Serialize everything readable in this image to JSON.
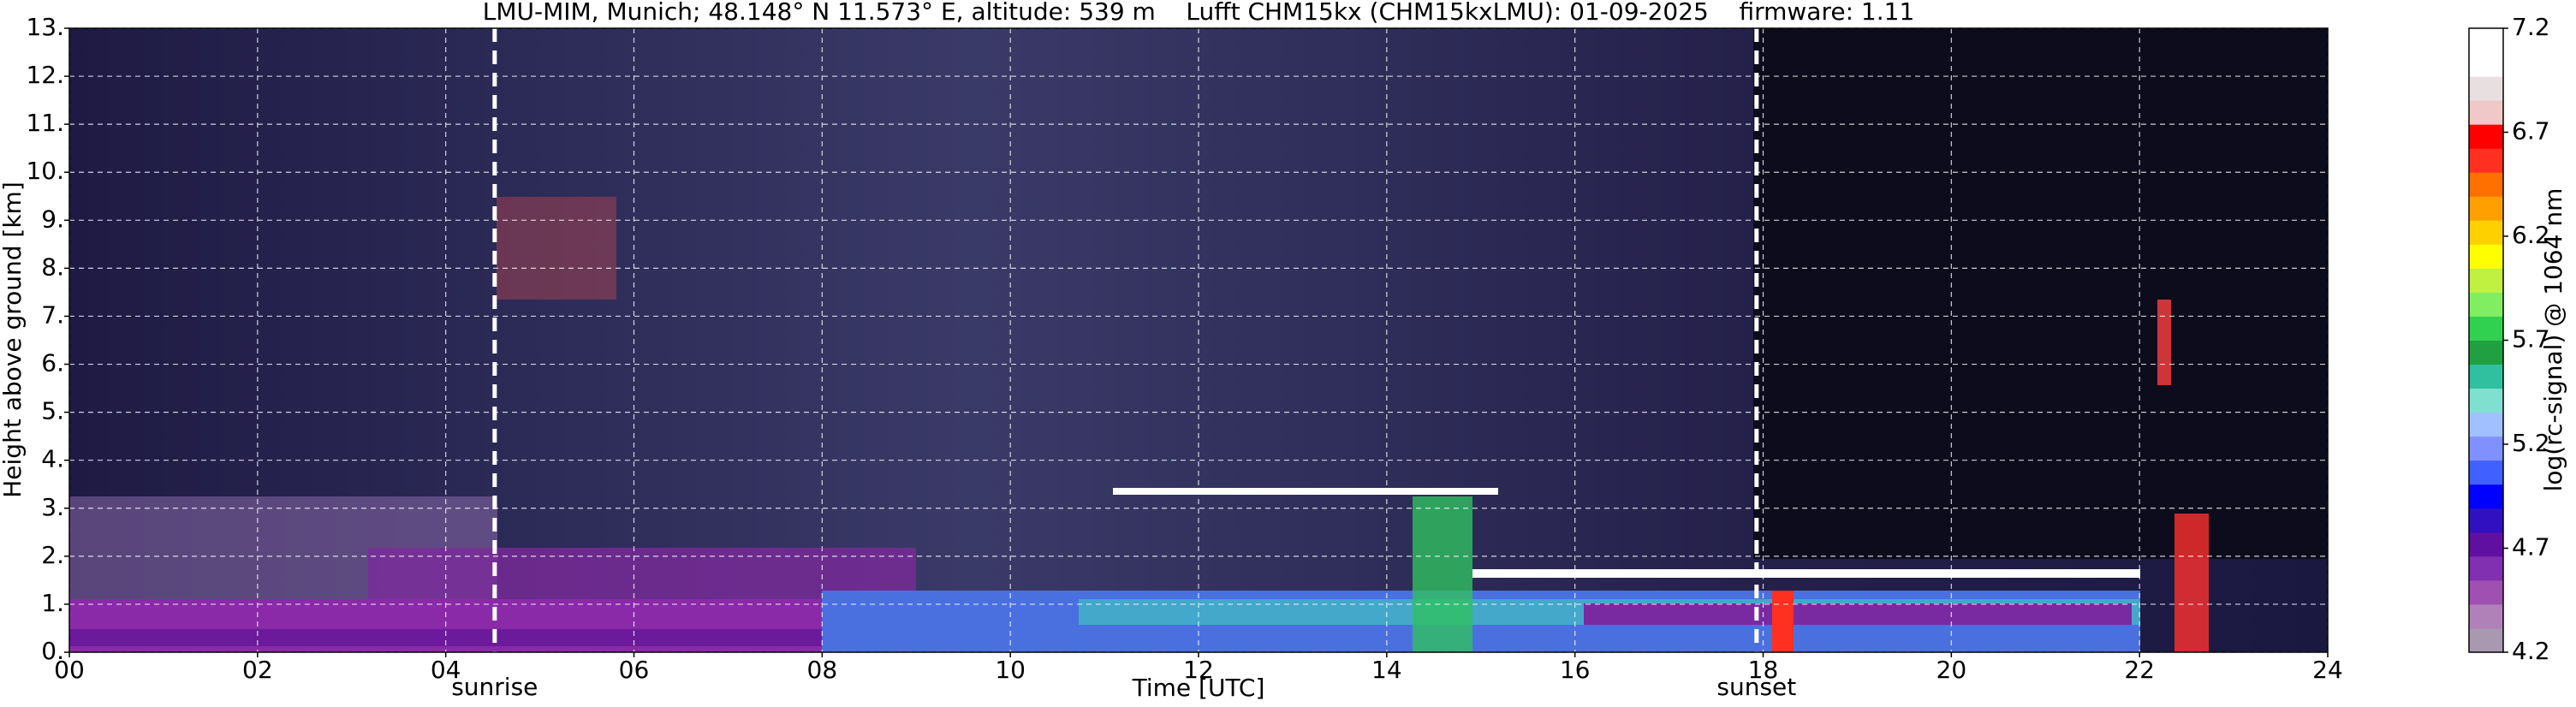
{
  "chart_data": {
    "type": "heatmap",
    "title": "LMU-MIM, Munich; 48.148° N 11.573° E, altitude: 539 m    Lufft CHM15kx (CHM15kxLMU): 01-09-2025    firmware: 1.11",
    "xlabel": "Time [UTC]",
    "ylabel": "Height above ground [km]",
    "xlim": [
      0,
      24
    ],
    "xticks": [
      {
        "value": 0,
        "label": "00"
      },
      {
        "value": 2,
        "label": "02"
      },
      {
        "value": 4,
        "label": "04"
      },
      {
        "value": 6,
        "label": "06"
      },
      {
        "value": 8,
        "label": "08"
      },
      10,
      12,
      14,
      16,
      18,
      20,
      22,
      24
    ],
    "ylim": [
      0,
      13
    ],
    "yticks": [
      {
        "value": 0,
        "label": "0."
      },
      {
        "value": 1,
        "label": "1."
      },
      {
        "value": 2,
        "label": "2."
      },
      {
        "value": 3,
        "label": "3."
      },
      {
        "value": 4,
        "label": "4."
      },
      {
        "value": 5,
        "label": "5."
      },
      {
        "value": 6,
        "label": "6."
      },
      {
        "value": 7,
        "label": "7."
      },
      {
        "value": 8,
        "label": "8."
      },
      {
        "value": 9,
        "label": "9."
      },
      {
        "value": 10,
        "label": "10."
      },
      {
        "value": 11,
        "label": "11."
      },
      {
        "value": 12,
        "label": "12."
      },
      {
        "value": 13,
        "label": "13."
      }
    ],
    "grid": true,
    "grid_color": "#ffffff",
    "annotations": [
      {
        "label": "sunrise",
        "x": 4.52
      },
      {
        "label": "sunset",
        "x": 17.93
      }
    ],
    "colorbar": {
      "label": "log(rc-signal) @ 1064 nm",
      "lim": [
        4.2,
        7.2
      ],
      "ticks": [
        4.2,
        4.7,
        5.2,
        5.7,
        6.2,
        6.7,
        7.2
      ],
      "colors": [
        "#a898b0",
        "#b080b8",
        "#a050b0",
        "#8030b0",
        "#6010a0",
        "#3010c0",
        "#0000ff",
        "#4060ff",
        "#8090ff",
        "#a0c0ff",
        "#80e0d0",
        "#30c0a0",
        "#20a040",
        "#30d050",
        "#80ee60",
        "#c0f040",
        "#ffff00",
        "#ffd000",
        "#ffa000",
        "#ff7000",
        "#ff3020",
        "#ff0000",
        "#f0c8c8",
        "#e8e0e0",
        "#ffffff",
        "#ffffff"
      ]
    }
  }
}
